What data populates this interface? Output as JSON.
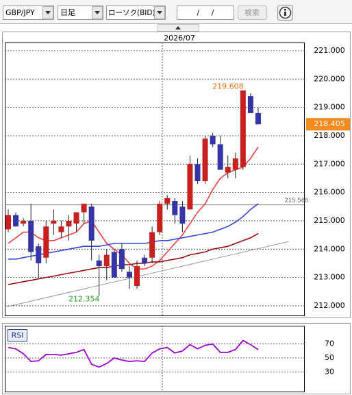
{
  "toolbar": {
    "symbol": "GBP/JPY",
    "period": "日足",
    "chart_kind": "ローソク(BID)",
    "date": "/ /",
    "search": "検索"
  },
  "chart_data": [
    {
      "type": "candlestick",
      "date_label": "2026/07",
      "open": [
        214.7,
        215.2,
        214.9,
        215.0,
        214.1,
        213.7,
        214.9,
        214.6,
        214.8,
        214.9,
        215.3,
        215.5,
        213.6,
        213.4,
        213.9,
        214.0,
        213.2,
        212.7,
        213.7,
        213.7,
        214.6,
        215.6,
        215.7,
        215.5,
        215.4,
        217.0,
        216.4,
        218.0,
        217.7,
        216.7,
        216.8,
        216.9,
        219.4,
        218.8
      ],
      "high": [
        215.4,
        215.3,
        215.1,
        215.6,
        214.2,
        215.0,
        215.4,
        215.0,
        215.2,
        215.3,
        215.6,
        215.6,
        213.8,
        214.0,
        214.0,
        214.2,
        213.4,
        213.6,
        213.8,
        214.8,
        215.7,
        215.9,
        215.8,
        215.7,
        217.3,
        217.2,
        218.0,
        218.1,
        218.0,
        217.3,
        217.4,
        219.608,
        219.5,
        219.0
      ],
      "low": [
        214.6,
        214.8,
        214.8,
        213.6,
        213.0,
        213.5,
        214.5,
        214.4,
        214.3,
        214.6,
        214.9,
        213.6,
        212.354,
        212.9,
        213.0,
        213.2,
        212.6,
        212.6,
        213.4,
        213.5,
        214.5,
        215.4,
        214.9,
        214.6,
        215.4,
        216.3,
        216.3,
        217.6,
        216.8,
        216.5,
        216.5,
        216.8,
        218.8,
        218.4
      ],
      "close": [
        215.2,
        214.8,
        215.0,
        213.9,
        213.5,
        214.8,
        215.0,
        214.8,
        215.0,
        215.3,
        215.6,
        214.3,
        213.4,
        213.8,
        213.0,
        213.3,
        213.0,
        213.4,
        213.5,
        214.6,
        215.6,
        215.8,
        215.2,
        214.9,
        217.0,
        216.4,
        217.9,
        217.7,
        216.8,
        216.9,
        217.2,
        219.6,
        218.8,
        218.405
      ],
      "up_color": "#c8201e",
      "down_color": "#3535a8",
      "lines": [
        {
          "color": "#ea4040",
          "values": [
            214.2,
            214.4,
            214.6,
            214.6,
            214.4,
            214.3,
            214.3,
            214.4,
            214.5,
            214.6,
            214.9,
            215.0,
            214.6,
            214.2,
            214.0,
            213.8,
            213.5,
            213.3,
            213.3,
            213.4,
            213.6,
            213.9,
            214.2,
            214.5,
            214.9,
            215.3,
            215.6,
            216.1,
            216.5,
            216.7,
            216.8,
            216.9,
            217.2,
            217.6
          ]
        },
        {
          "color": "#3344dd",
          "values": [
            213.65,
            213.65,
            213.7,
            213.75,
            213.8,
            213.85,
            213.9,
            213.95,
            214.0,
            214.05,
            214.1,
            214.1,
            214.1,
            214.15,
            214.2,
            214.2,
            214.2,
            214.2,
            214.2,
            214.25,
            214.3,
            214.3,
            214.35,
            214.4,
            214.45,
            214.5,
            214.55,
            214.6,
            214.7,
            214.8,
            214.95,
            215.15,
            215.4,
            215.6
          ]
        },
        {
          "color": "#9a0c0c",
          "values": [
            212.75,
            212.8,
            212.85,
            212.9,
            212.95,
            213.0,
            213.05,
            213.1,
            213.15,
            213.2,
            213.25,
            213.3,
            213.35,
            213.35,
            213.4,
            213.45,
            213.45,
            213.5,
            213.5,
            213.55,
            213.55,
            213.6,
            213.65,
            213.7,
            213.8,
            213.85,
            213.9,
            214.0,
            214.05,
            214.1,
            214.2,
            214.3,
            214.4,
            214.55
          ]
        }
      ],
      "trendline": [
        211.95,
        214.27
      ],
      "trend_color": "#999999",
      "reference_line": 215.566,
      "ylim": [
        211.66,
        221.29
      ],
      "yticks": [
        {
          "value": 212,
          "label": "212.000"
        },
        {
          "value": 213,
          "label": "213.000"
        },
        {
          "value": 214,
          "label": "214.000"
        },
        {
          "value": 215,
          "label": "215.000"
        },
        {
          "value": 216,
          "label": "216.000"
        },
        {
          "value": 217,
          "label": "217.000"
        },
        {
          "value": 218,
          "label": "218.000"
        },
        {
          "value": 219,
          "label": "219.000"
        },
        {
          "value": 220,
          "label": "220.000"
        },
        {
          "value": 221,
          "label": "221.000"
        }
      ],
      "grid": true
    },
    {
      "type": "line",
      "title": "RSI",
      "color": "#9a00d0",
      "values": [
        65,
        63,
        56,
        45,
        46,
        55,
        55,
        54,
        56,
        58,
        62,
        41,
        37,
        42,
        50,
        47,
        45,
        46,
        45,
        57,
        63,
        65,
        57,
        60,
        69,
        63,
        68,
        70,
        58,
        58,
        62,
        75,
        69,
        62
      ],
      "ylim": [
        2,
        96
      ],
      "yticks": [
        30,
        50,
        70
      ],
      "grid": true
    }
  ]
}
